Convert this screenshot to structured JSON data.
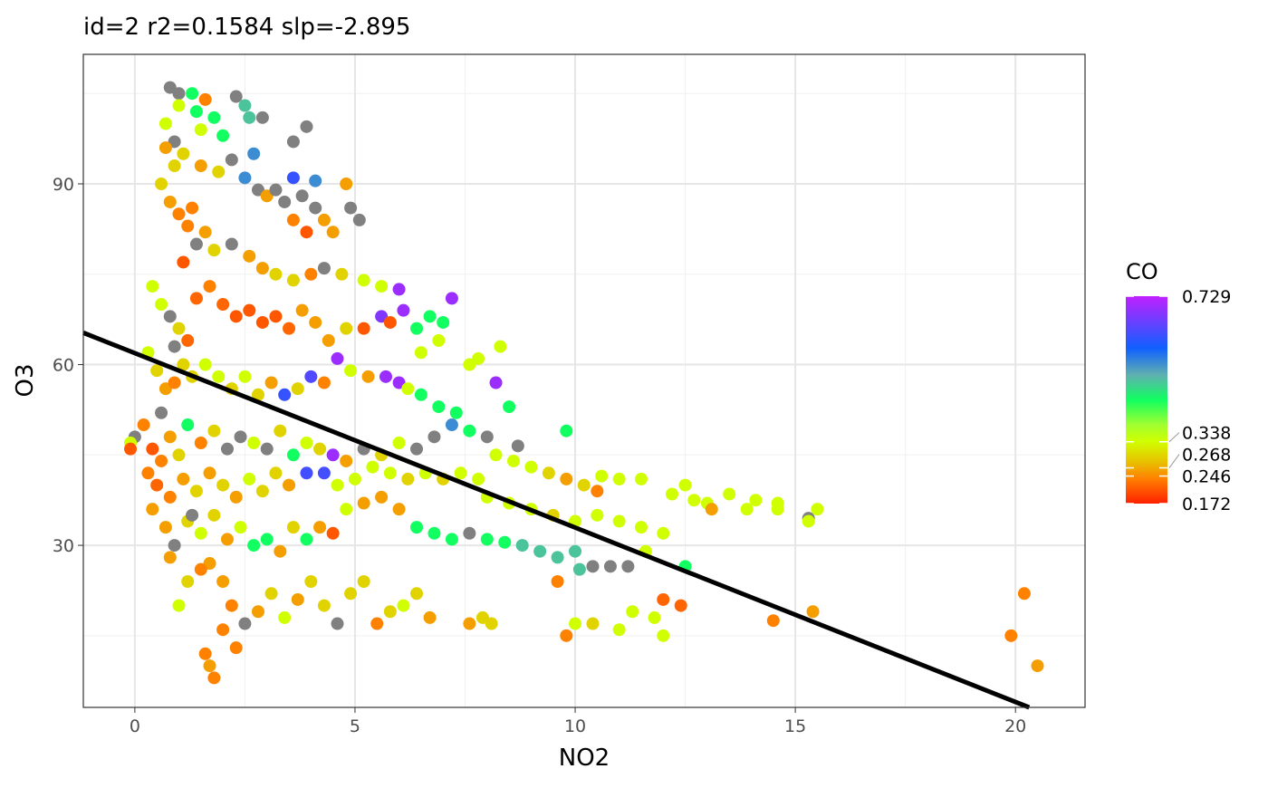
{
  "chart_data": {
    "type": "scatter",
    "title": "id=2 r2=0.1584 slp=-2.895",
    "xlabel": "NO2",
    "ylabel": "O3",
    "xlim": [
      -1.17,
      21.58
    ],
    "ylim": [
      3.1,
      111.5
    ],
    "xticks": [
      0,
      5,
      10,
      15,
      20
    ],
    "yticks": [
      30,
      60,
      90
    ],
    "grid": true,
    "legend": {
      "title": "CO",
      "placement": "right",
      "range": [
        0.172,
        0.729
      ],
      "breaks": [
        0.729,
        0.338,
        0.268,
        0.246,
        0.172
      ],
      "colors": [
        "#ff2000",
        "#ff8000",
        "#e8c000",
        "#d0ff00",
        "#a0ff30",
        "#10ff60",
        "#60b0b0",
        "#1060ff",
        "#c020ff"
      ],
      "na_color": "#808080"
    },
    "fit_line": {
      "intercept": 61.9,
      "slope": -2.895
    },
    "points": [
      [
        0.8,
        106,
        null
      ],
      [
        1.0,
        105,
        null
      ],
      [
        1.3,
        105,
        0.45
      ],
      [
        1.6,
        104,
        0.24
      ],
      [
        2.3,
        104.5,
        null
      ],
      [
        2.5,
        103,
        0.5
      ],
      [
        2.6,
        101,
        0.5
      ],
      [
        2.9,
        101,
        null
      ],
      [
        1.0,
        103,
        0.34
      ],
      [
        1.4,
        102,
        0.45
      ],
      [
        2.0,
        98,
        0.45
      ],
      [
        2.7,
        95,
        0.55
      ],
      [
        3.6,
        97,
        null
      ],
      [
        3.9,
        99.5,
        null
      ],
      [
        3.6,
        91,
        0.62
      ],
      [
        4.1,
        90.5,
        0.55
      ],
      [
        4.8,
        90,
        0.26
      ],
      [
        4.9,
        86,
        null
      ],
      [
        5.1,
        84,
        null
      ],
      [
        0.7,
        100,
        0.34
      ],
      [
        0.9,
        97,
        null
      ],
      [
        1.1,
        95,
        0.3
      ],
      [
        1.5,
        93,
        0.26
      ],
      [
        1.9,
        92,
        0.3
      ],
      [
        2.2,
        94,
        null
      ],
      [
        2.5,
        91,
        0.55
      ],
      [
        2.8,
        89,
        null
      ],
      [
        3.0,
        88,
        0.26
      ],
      [
        3.2,
        89,
        null
      ],
      [
        3.4,
        87,
        null
      ],
      [
        3.8,
        88,
        null
      ],
      [
        4.1,
        86,
        null
      ],
      [
        4.3,
        84,
        0.26
      ],
      [
        4.5,
        82,
        0.26
      ],
      [
        3.6,
        84,
        0.24
      ],
      [
        3.9,
        82,
        0.21
      ],
      [
        0.6,
        90,
        0.3
      ],
      [
        0.8,
        87,
        0.26
      ],
      [
        1.0,
        85,
        0.24
      ],
      [
        1.2,
        83,
        0.24
      ],
      [
        1.4,
        80,
        null
      ],
      [
        1.6,
        82,
        0.26
      ],
      [
        1.8,
        79,
        0.3
      ],
      [
        2.2,
        80,
        null
      ],
      [
        2.6,
        78,
        0.26
      ],
      [
        2.9,
        76,
        0.26
      ],
      [
        3.2,
        75,
        0.3
      ],
      [
        3.6,
        74,
        0.3
      ],
      [
        4.0,
        75,
        0.24
      ],
      [
        4.3,
        76,
        null
      ],
      [
        4.7,
        75,
        0.3
      ],
      [
        5.2,
        74,
        0.34
      ],
      [
        5.6,
        73,
        0.34
      ],
      [
        6.0,
        72.5,
        0.7
      ],
      [
        7.2,
        71,
        0.7
      ],
      [
        0.4,
        73,
        0.34
      ],
      [
        0.6,
        70,
        0.34
      ],
      [
        0.8,
        68,
        null
      ],
      [
        1.0,
        66,
        0.3
      ],
      [
        1.2,
        64,
        0.22
      ],
      [
        1.4,
        71,
        0.22
      ],
      [
        1.7,
        73,
        0.24
      ],
      [
        2.0,
        70,
        0.22
      ],
      [
        2.3,
        68,
        0.21
      ],
      [
        2.6,
        69,
        0.21
      ],
      [
        2.9,
        67,
        0.21
      ],
      [
        3.2,
        68,
        0.21
      ],
      [
        3.5,
        66,
        0.22
      ],
      [
        3.8,
        69,
        0.26
      ],
      [
        4.1,
        67,
        0.26
      ],
      [
        4.4,
        64,
        0.26
      ],
      [
        4.8,
        66,
        0.3
      ],
      [
        5.2,
        66,
        0.21
      ],
      [
        5.6,
        68,
        0.68
      ],
      [
        5.8,
        67,
        0.21
      ],
      [
        6.1,
        69,
        0.7
      ],
      [
        6.4,
        66,
        0.45
      ],
      [
        6.7,
        68,
        0.45
      ],
      [
        7.0,
        67,
        0.45
      ],
      [
        6.5,
        62,
        0.34
      ],
      [
        6.9,
        64,
        0.34
      ],
      [
        0.3,
        62,
        0.34
      ],
      [
        0.5,
        59,
        0.3
      ],
      [
        0.7,
        56,
        0.26
      ],
      [
        0.9,
        57,
        0.24
      ],
      [
        1.1,
        60,
        0.3
      ],
      [
        1.3,
        58,
        0.3
      ],
      [
        1.6,
        60,
        0.34
      ],
      [
        1.9,
        58,
        0.34
      ],
      [
        2.2,
        56,
        0.3
      ],
      [
        2.5,
        58,
        0.34
      ],
      [
        2.8,
        55,
        0.3
      ],
      [
        3.1,
        57,
        0.26
      ],
      [
        3.4,
        55,
        0.62
      ],
      [
        3.7,
        56,
        0.3
      ],
      [
        4.0,
        58,
        0.64
      ],
      [
        4.3,
        57,
        0.24
      ],
      [
        4.6,
        61,
        0.7
      ],
      [
        4.9,
        59,
        0.34
      ],
      [
        5.3,
        58,
        0.26
      ],
      [
        5.7,
        58,
        0.7
      ],
      [
        6.0,
        57,
        0.7
      ],
      [
        6.2,
        56,
        0.34
      ],
      [
        6.5,
        55,
        0.45
      ],
      [
        6.9,
        53,
        0.45
      ],
      [
        7.3,
        52,
        0.45
      ],
      [
        7.6,
        60,
        0.34
      ],
      [
        7.8,
        61,
        0.34
      ],
      [
        8.3,
        63,
        0.34
      ],
      [
        8.2,
        57,
        0.7
      ],
      [
        8.5,
        53,
        0.45
      ],
      [
        9.8,
        49,
        0.45
      ],
      [
        0.0,
        48,
        null
      ],
      [
        -0.1,
        47,
        0.34
      ],
      [
        0.2,
        50,
        0.24
      ],
      [
        0.4,
        46,
        0.21
      ],
      [
        0.6,
        44,
        0.24
      ],
      [
        0.8,
        48,
        0.26
      ],
      [
        1.0,
        45,
        0.3
      ],
      [
        1.2,
        50,
        0.45
      ],
      [
        1.5,
        47,
        0.24
      ],
      [
        1.8,
        49,
        0.3
      ],
      [
        2.1,
        46,
        null
      ],
      [
        2.4,
        48,
        null
      ],
      [
        2.7,
        47,
        0.34
      ],
      [
        3.0,
        46,
        null
      ],
      [
        3.3,
        49,
        0.3
      ],
      [
        3.6,
        45,
        0.45
      ],
      [
        3.9,
        47,
        0.34
      ],
      [
        4.2,
        46,
        0.3
      ],
      [
        4.5,
        45,
        0.7
      ],
      [
        4.8,
        44,
        0.26
      ],
      [
        5.2,
        46,
        null
      ],
      [
        5.6,
        45,
        0.3
      ],
      [
        6.0,
        47,
        0.34
      ],
      [
        6.4,
        46,
        null
      ],
      [
        6.8,
        48,
        null
      ],
      [
        7.2,
        50,
        0.55
      ],
      [
        7.6,
        49,
        0.45
      ],
      [
        8.0,
        48,
        null
      ],
      [
        8.7,
        46.5,
        null
      ],
      [
        -0.1,
        46,
        0.21
      ],
      [
        0.3,
        42,
        0.24
      ],
      [
        0.5,
        40,
        0.22
      ],
      [
        0.8,
        38,
        0.24
      ],
      [
        1.1,
        41,
        0.26
      ],
      [
        1.4,
        39,
        0.3
      ],
      [
        1.7,
        42,
        0.26
      ],
      [
        2.0,
        40,
        0.3
      ],
      [
        2.3,
        38,
        0.26
      ],
      [
        2.6,
        41,
        0.34
      ],
      [
        2.9,
        39,
        0.3
      ],
      [
        3.2,
        42,
        0.3
      ],
      [
        3.5,
        40,
        0.26
      ],
      [
        3.9,
        42,
        0.63
      ],
      [
        4.3,
        42,
        0.63
      ],
      [
        4.6,
        40,
        0.34
      ],
      [
        5.0,
        41,
        0.34
      ],
      [
        5.4,
        43,
        0.34
      ],
      [
        5.8,
        42,
        0.34
      ],
      [
        6.2,
        41,
        0.3
      ],
      [
        6.6,
        42,
        0.34
      ],
      [
        7.0,
        41,
        0.3
      ],
      [
        7.4,
        42,
        0.34
      ],
      [
        7.8,
        41,
        0.34
      ],
      [
        8.2,
        45,
        0.34
      ],
      [
        8.6,
        44,
        0.34
      ],
      [
        9.0,
        43,
        0.34
      ],
      [
        9.4,
        42,
        0.3
      ],
      [
        9.8,
        41,
        0.26
      ],
      [
        10.2,
        40,
        0.3
      ],
      [
        10.6,
        41.5,
        0.34
      ],
      [
        11.0,
        41,
        0.34
      ],
      [
        11.5,
        41,
        0.34
      ],
      [
        10.5,
        39,
        0.24
      ],
      [
        0.4,
        36,
        0.26
      ],
      [
        0.7,
        33,
        0.26
      ],
      [
        0.9,
        30,
        null
      ],
      [
        1.2,
        34,
        0.3
      ],
      [
        1.5,
        32,
        0.34
      ],
      [
        1.8,
        35,
        0.3
      ],
      [
        2.1,
        31,
        0.26
      ],
      [
        2.4,
        33,
        0.34
      ],
      [
        2.7,
        30,
        0.45
      ],
      [
        3.0,
        31,
        0.45
      ],
      [
        3.3,
        29,
        0.26
      ],
      [
        3.6,
        33,
        0.3
      ],
      [
        3.9,
        31,
        0.45
      ],
      [
        4.2,
        33,
        0.26
      ],
      [
        4.5,
        32,
        0.21
      ],
      [
        4.8,
        36,
        0.34
      ],
      [
        5.2,
        37,
        0.26
      ],
      [
        5.6,
        38,
        0.26
      ],
      [
        6.0,
        36,
        0.26
      ],
      [
        6.4,
        33,
        0.45
      ],
      [
        6.8,
        32,
        0.45
      ],
      [
        7.2,
        31,
        0.45
      ],
      [
        7.6,
        32,
        null
      ],
      [
        8.0,
        31,
        0.45
      ],
      [
        8.4,
        30.5,
        0.45
      ],
      [
        8.8,
        30,
        0.5
      ],
      [
        9.2,
        29,
        0.5
      ],
      [
        9.6,
        28,
        0.5
      ],
      [
        10.0,
        29,
        0.5
      ],
      [
        10.4,
        26.5,
        null
      ],
      [
        10.8,
        26.5,
        null
      ],
      [
        11.2,
        26.5,
        null
      ],
      [
        9.6,
        24,
        0.24
      ],
      [
        10.1,
        26,
        0.5
      ],
      [
        8.0,
        38,
        0.34
      ],
      [
        8.5,
        37,
        0.34
      ],
      [
        9.0,
        36,
        0.34
      ],
      [
        9.5,
        35,
        0.3
      ],
      [
        10.0,
        34,
        0.34
      ],
      [
        10.5,
        35,
        0.34
      ],
      [
        11.0,
        34,
        0.34
      ],
      [
        11.5,
        33,
        0.34
      ],
      [
        12.0,
        32,
        0.34
      ],
      [
        12.2,
        38.5,
        0.34
      ],
      [
        12.5,
        40,
        0.34
      ],
      [
        12.7,
        37.5,
        0.34
      ],
      [
        13.0,
        37,
        0.34
      ],
      [
        13.1,
        36,
        0.26
      ],
      [
        13.5,
        38.5,
        0.34
      ],
      [
        13.9,
        36,
        0.34
      ],
      [
        14.1,
        37.5,
        0.34
      ],
      [
        14.6,
        37,
        0.34
      ],
      [
        14.6,
        36,
        0.34
      ],
      [
        15.3,
        34.5,
        null
      ],
      [
        15.3,
        34,
        0.34
      ],
      [
        15.5,
        36,
        0.34
      ],
      [
        11.6,
        29,
        0.34
      ],
      [
        12.5,
        26.5,
        0.45
      ],
      [
        1.7,
        27,
        0.26
      ],
      [
        2.0,
        24,
        0.26
      ],
      [
        2.2,
        20,
        0.24
      ],
      [
        2.5,
        17,
        null
      ],
      [
        2.8,
        19,
        0.26
      ],
      [
        3.1,
        22,
        0.3
      ],
      [
        3.4,
        18,
        0.34
      ],
      [
        3.7,
        21,
        0.26
      ],
      [
        4.0,
        24,
        0.3
      ],
      [
        4.3,
        20,
        0.3
      ],
      [
        4.6,
        17,
        null
      ],
      [
        4.9,
        22,
        0.3
      ],
      [
        5.2,
        24,
        0.3
      ],
      [
        5.5,
        17,
        0.24
      ],
      [
        5.8,
        19,
        0.3
      ],
      [
        6.1,
        20,
        0.34
      ],
      [
        6.4,
        22,
        0.3
      ],
      [
        6.7,
        18,
        0.26
      ],
      [
        7.6,
        17,
        0.26
      ],
      [
        7.9,
        18,
        0.3
      ],
      [
        8.1,
        17,
        0.3
      ],
      [
        9.8,
        15,
        0.24
      ],
      [
        10.0,
        17,
        0.34
      ],
      [
        10.4,
        17,
        0.3
      ],
      [
        11.0,
        16,
        0.34
      ],
      [
        11.3,
        19,
        0.34
      ],
      [
        11.8,
        18,
        0.34
      ],
      [
        12.0,
        21,
        0.22
      ],
      [
        12.4,
        20,
        0.22
      ],
      [
        12.0,
        15,
        0.34
      ],
      [
        14.5,
        17.5,
        0.24
      ],
      [
        15.4,
        19,
        0.26
      ],
      [
        20.2,
        22,
        0.24
      ],
      [
        19.9,
        15,
        0.24
      ],
      [
        20.5,
        10,
        0.26
      ],
      [
        1.6,
        12,
        0.24
      ],
      [
        1.8,
        8,
        0.24
      ],
      [
        1.7,
        10,
        0.26
      ],
      [
        2.3,
        13,
        0.24
      ],
      [
        2.0,
        16,
        0.24
      ],
      [
        1.0,
        20,
        0.34
      ],
      [
        1.2,
        24,
        0.3
      ],
      [
        1.5,
        26,
        0.24
      ],
      [
        0.8,
        28,
        0.26
      ],
      [
        1.3,
        35,
        null
      ],
      [
        0.6,
        52,
        null
      ],
      [
        0.9,
        63,
        null
      ],
      [
        1.1,
        77,
        0.21
      ],
      [
        1.3,
        86,
        0.24
      ],
      [
        0.9,
        93,
        0.3
      ],
      [
        0.7,
        96,
        0.26
      ],
      [
        1.5,
        99,
        0.34
      ],
      [
        1.8,
        101,
        0.45
      ]
    ]
  }
}
